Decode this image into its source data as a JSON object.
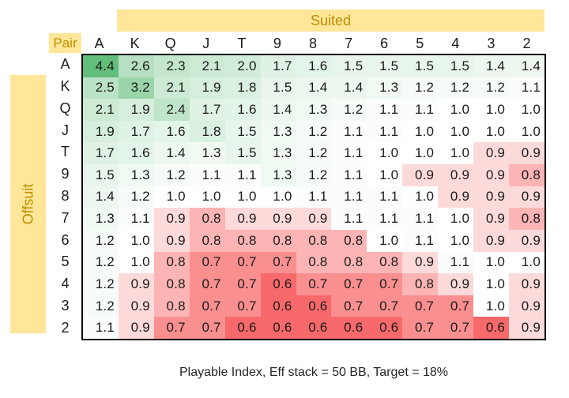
{
  "labels": {
    "suited": "Suited",
    "offsuit": "Offsuit",
    "pair": "Pair"
  },
  "caption": "Playable Index, Eff stack = 50 BB, Target = 18%",
  "colors": {
    "band_bg": "#FFE699",
    "band_text": "#BF8F00",
    "grid_border": "#000000",
    "value_text": "#1A1A1A",
    "caption_text": "#262626",
    "scale_min_color": "#F8696B",
    "scale_mid_color": "#FFFFFF",
    "scale_max_color": "#63BE7B"
  },
  "chart_data": {
    "type": "heatmap",
    "title": "Playable Index, Eff stack = 50 BB, Target = 18%",
    "top_axis_label": "Suited",
    "left_axis_label": "Offsuit",
    "corner_label": "Pair",
    "columns": [
      "A",
      "K",
      "Q",
      "J",
      "T",
      "9",
      "8",
      "7",
      "6",
      "5",
      "4",
      "3",
      "2"
    ],
    "rows": [
      "A",
      "K",
      "Q",
      "J",
      "T",
      "9",
      "8",
      "7",
      "6",
      "5",
      "4",
      "3",
      "2"
    ],
    "values": [
      [
        4.4,
        2.6,
        2.3,
        2.1,
        2.0,
        1.7,
        1.6,
        1.5,
        1.5,
        1.5,
        1.5,
        1.4,
        1.4
      ],
      [
        2.5,
        3.2,
        2.1,
        1.9,
        1.8,
        1.5,
        1.4,
        1.4,
        1.3,
        1.2,
        1.2,
        1.2,
        1.1
      ],
      [
        2.1,
        1.9,
        2.4,
        1.7,
        1.6,
        1.4,
        1.3,
        1.2,
        1.1,
        1.1,
        1.0,
        1.0,
        1.0
      ],
      [
        1.9,
        1.7,
        1.6,
        1.8,
        1.5,
        1.3,
        1.2,
        1.1,
        1.1,
        1.0,
        1.0,
        1.0,
        1.0
      ],
      [
        1.7,
        1.6,
        1.4,
        1.3,
        1.5,
        1.3,
        1.2,
        1.1,
        1.0,
        1.0,
        1.0,
        0.9,
        0.9
      ],
      [
        1.5,
        1.3,
        1.2,
        1.1,
        1.1,
        1.3,
        1.2,
        1.1,
        1.0,
        0.9,
        0.9,
        0.9,
        0.8
      ],
      [
        1.4,
        1.2,
        1.0,
        1.0,
        1.0,
        1.0,
        1.1,
        1.1,
        1.1,
        1.0,
        0.9,
        0.9,
        0.9
      ],
      [
        1.3,
        1.1,
        0.9,
        0.8,
        0.9,
        0.9,
        0.9,
        1.1,
        1.1,
        1.1,
        1.0,
        0.9,
        0.8
      ],
      [
        1.2,
        1.0,
        0.9,
        0.8,
        0.8,
        0.8,
        0.8,
        0.8,
        1.0,
        1.1,
        1.0,
        0.9,
        0.9
      ],
      [
        1.2,
        1.0,
        0.8,
        0.7,
        0.7,
        0.7,
        0.8,
        0.8,
        0.8,
        0.9,
        1.1,
        1.0,
        1.0
      ],
      [
        1.2,
        0.9,
        0.8,
        0.7,
        0.7,
        0.6,
        0.7,
        0.7,
        0.7,
        0.8,
        0.9,
        1.0,
        0.9
      ],
      [
        1.2,
        0.9,
        0.8,
        0.7,
        0.7,
        0.6,
        0.6,
        0.7,
        0.7,
        0.7,
        0.7,
        1.0,
        0.9
      ],
      [
        1.1,
        0.9,
        0.7,
        0.7,
        0.6,
        0.6,
        0.6,
        0.6,
        0.6,
        0.7,
        0.7,
        0.6,
        0.9
      ]
    ],
    "value_format": "one_decimal",
    "color_scale": {
      "min_value": 0.6,
      "mid_value": 1.0,
      "max_value": 4.4,
      "min_color": "#F8696B",
      "mid_color": "#FFFFFF",
      "max_color": "#63BE7B"
    },
    "layout_notes": "upper-right triangle = suited hands, lower-left triangle = offsuit hands, diagonal = pairs; grid outlined in black; no inner gridlines"
  }
}
